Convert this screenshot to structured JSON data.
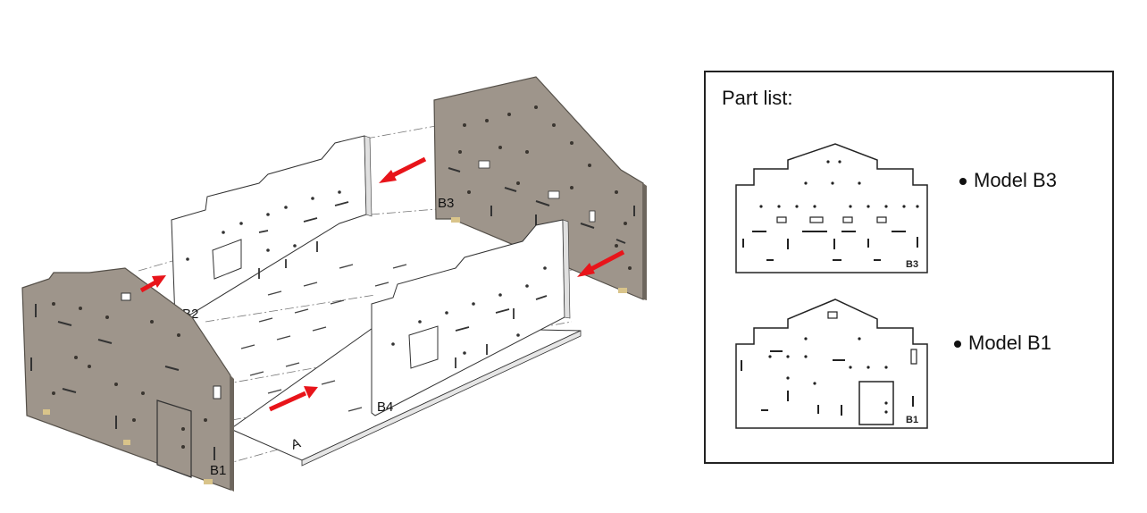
{
  "colors": {
    "panel_grey": "#9e958b",
    "panel_edge": "#555049",
    "arrow_red": "#e8141a",
    "leg_tan": "#d9c48a"
  },
  "assembly": {
    "labels": {
      "b1": "B1",
      "b2": "B2",
      "b3": "B3",
      "b4": "B4",
      "base": "A"
    }
  },
  "part_list": {
    "title": "Part list:",
    "models": [
      {
        "name": "Model B3",
        "tag": "B3",
        "icon": "house-panel-b3-icon"
      },
      {
        "name": "Model B1",
        "tag": "B1",
        "icon": "house-panel-b1-door-icon"
      }
    ]
  }
}
